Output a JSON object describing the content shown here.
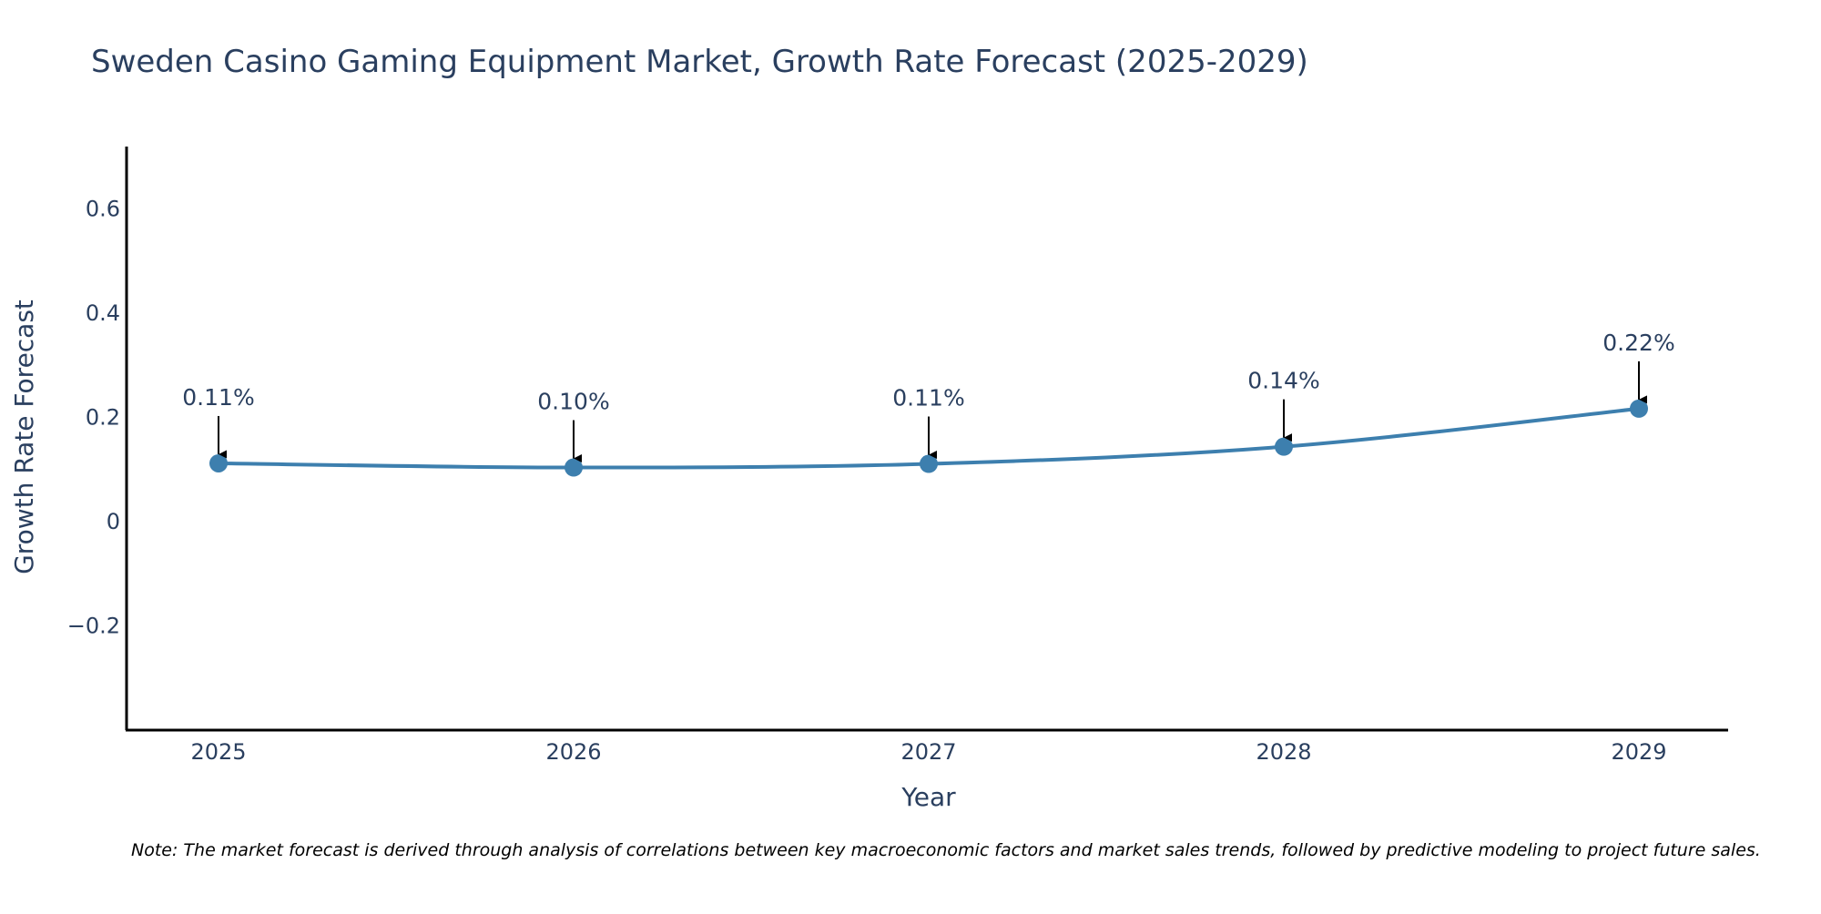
{
  "chart_data": {
    "type": "line",
    "title": "Sweden Casino Gaming Equipment Market, Growth Rate Forecast (2025-2029)",
    "xlabel": "Year",
    "ylabel": "Growth Rate Forecast",
    "categories": [
      "2025",
      "2026",
      "2027",
      "2028",
      "2029"
    ],
    "values": [
      0.112,
      0.104,
      0.111,
      0.144,
      0.217
    ],
    "data_labels": [
      "0.11%",
      "0.10%",
      "0.11%",
      "0.14%",
      "0.22%"
    ],
    "ylim": [
      -0.4,
      0.72
    ],
    "yticks": [
      -0.2,
      0,
      0.2,
      0.4,
      0.6
    ],
    "ytick_labels": [
      "−0.2",
      "0",
      "0.2",
      "0.4",
      "0.6"
    ],
    "grid": false,
    "legend": "none",
    "line_color": "#3d7fae",
    "marker_color": "#3d7fae",
    "annotation_arrow_color": "#000000"
  },
  "note": "Note: The market forecast is derived through analysis of correlations between key macroeconomic factors and market sales trends, followed by predictive modeling to project future sales."
}
